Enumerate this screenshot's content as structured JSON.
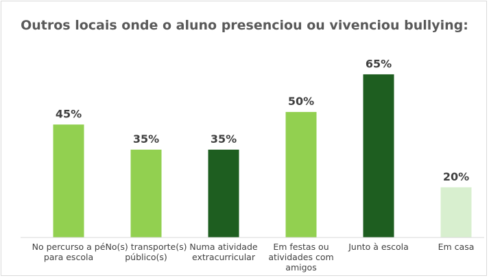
{
  "chart_data": {
    "type": "bar",
    "title": "Outros locais onde o aluno presenciou ou vivenciou bullying:",
    "categories": [
      "No percurso a pé para escola",
      "No(s) transporte(s) público(s)",
      "Numa atividade extracurricular",
      "Em festas ou atividades com amigos",
      "Junto à escola",
      "Em casa"
    ],
    "values": [
      45,
      35,
      35,
      50,
      65,
      20
    ],
    "data_labels": [
      "45%",
      "35%",
      "35%",
      "50%",
      "65%",
      "20%"
    ],
    "bar_colors": [
      "#92d050",
      "#92d050",
      "#1e5e20",
      "#92d050",
      "#1e5e20",
      "#d8efcf"
    ],
    "ylim": [
      0,
      70
    ],
    "grid": false,
    "legend": "none",
    "xlabel": "",
    "ylabel": ""
  }
}
